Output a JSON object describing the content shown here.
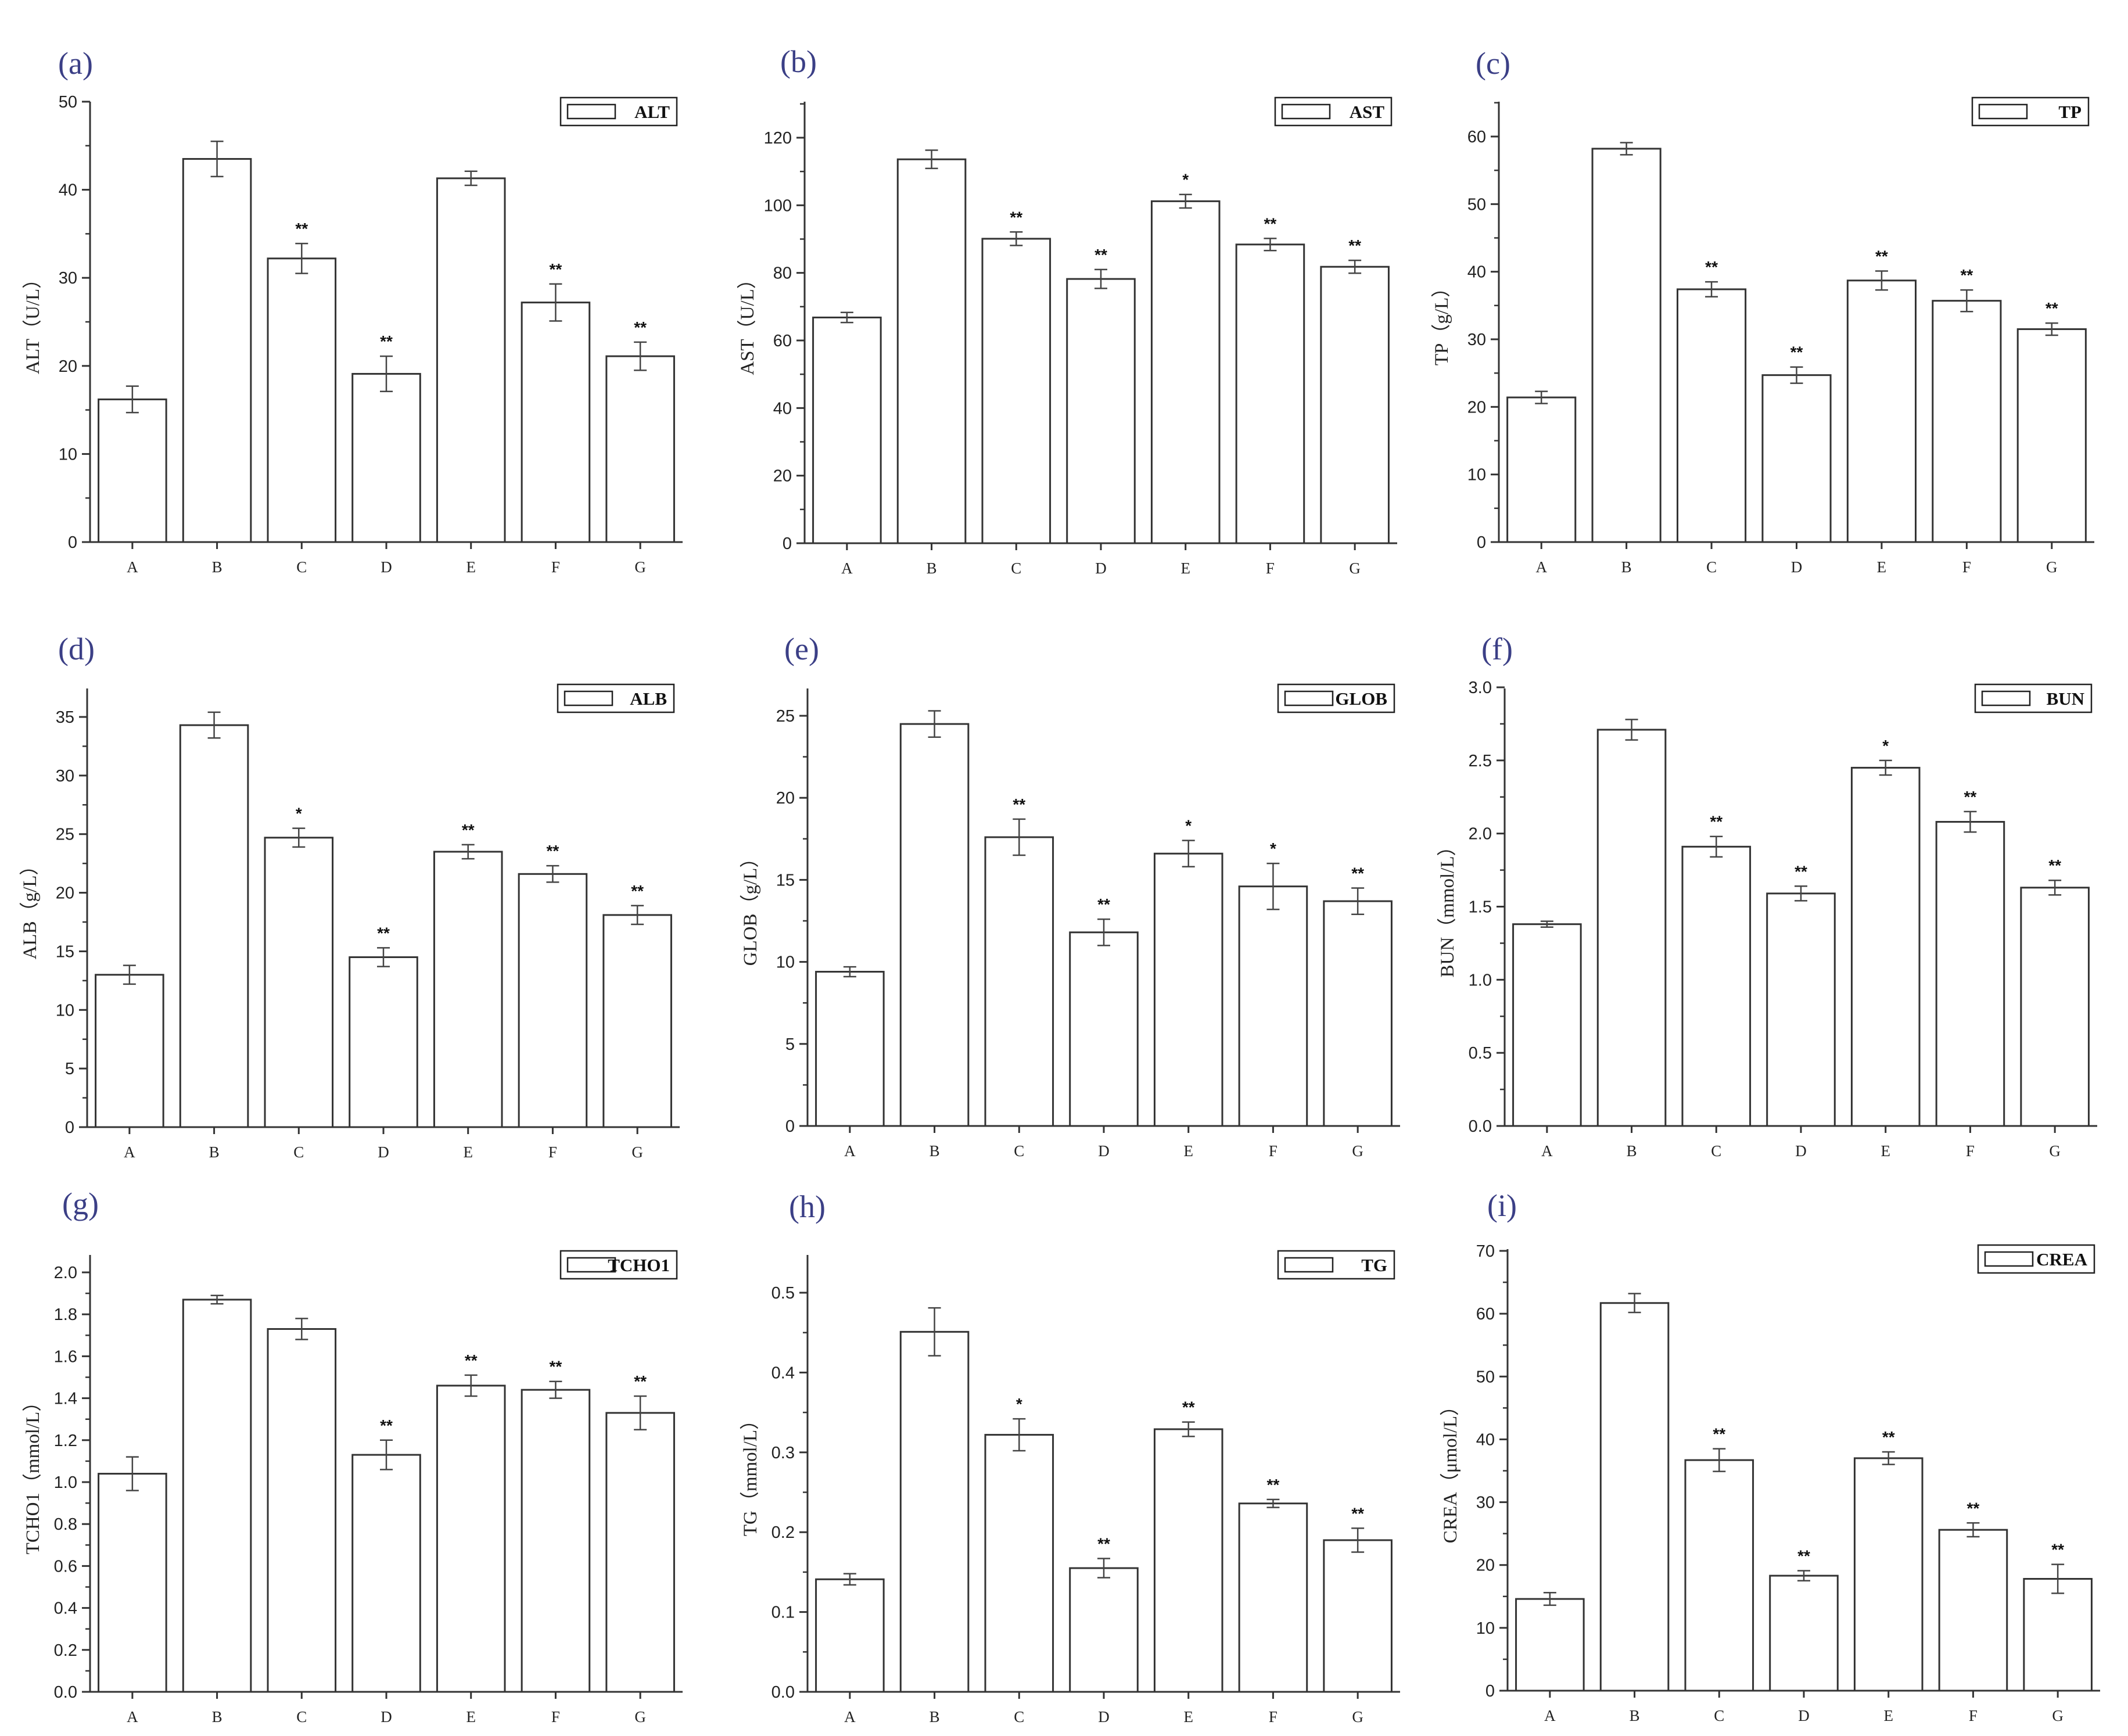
{
  "figure": {
    "panels": [
      {
        "label": "(a)"
      },
      {
        "label": "(b)"
      },
      {
        "label": "(c)"
      },
      {
        "label": "(d)"
      },
      {
        "label": "(e)"
      },
      {
        "label": "(f)"
      },
      {
        "label": "(g)"
      },
      {
        "label": "(h)"
      },
      {
        "label": "(i)"
      }
    ]
  },
  "chart_data": [
    {
      "type": "bar",
      "legend": "ALT",
      "legend_position": "top-right",
      "ylabel": "ALT（U/L）",
      "xlabel": "",
      "categories": [
        "A",
        "B",
        "C",
        "D",
        "E",
        "F",
        "G"
      ],
      "values": [
        16.2,
        43.5,
        32.2,
        19.1,
        41.3,
        27.2,
        21.1
      ],
      "errors": [
        1.5,
        2.0,
        1.7,
        2.0,
        0.8,
        2.1,
        1.6
      ],
      "significance": [
        "",
        "",
        "**",
        "**",
        "",
        "**",
        "**"
      ],
      "ylim": [
        0,
        50
      ],
      "yticks": [
        0,
        10,
        20,
        30,
        40,
        50
      ],
      "yminor": 5
    },
    {
      "type": "bar",
      "legend": "AST",
      "legend_position": "top-right",
      "ylabel": "AST（U/L）",
      "xlabel": "",
      "categories": [
        "A",
        "B",
        "C",
        "D",
        "E",
        "F",
        "G"
      ],
      "values": [
        66.8,
        113.6,
        90.1,
        78.2,
        101.2,
        88.4,
        81.8
      ],
      "errors": [
        1.5,
        2.7,
        2.0,
        2.8,
        2.0,
        1.8,
        1.9
      ],
      "significance": [
        "",
        "",
        "**",
        "**",
        "*",
        "**",
        "**"
      ],
      "ylim": [
        0,
        130
      ],
      "yticks": [
        0,
        20,
        40,
        60,
        80,
        100,
        120
      ],
      "yminor": 10
    },
    {
      "type": "bar",
      "legend": "TP",
      "legend_position": "top-right",
      "ylabel": "TP（g/L）",
      "xlabel": "",
      "categories": [
        "A",
        "B",
        "C",
        "D",
        "E",
        "F",
        "G"
      ],
      "values": [
        21.4,
        58.2,
        37.4,
        24.7,
        38.7,
        35.7,
        31.5
      ],
      "errors": [
        0.9,
        0.9,
        1.1,
        1.2,
        1.4,
        1.6,
        0.9
      ],
      "significance": [
        "",
        "",
        "**",
        "**",
        "**",
        "**",
        "**"
      ],
      "ylim": [
        0,
        65
      ],
      "yticks": [
        0,
        10,
        20,
        30,
        40,
        50,
        60
      ],
      "yminor": 5
    },
    {
      "type": "bar",
      "legend": "ALB",
      "legend_position": "top-right",
      "ylabel": "ALB（g/L）",
      "xlabel": "",
      "categories": [
        "A",
        "B",
        "C",
        "D",
        "E",
        "F",
        "G"
      ],
      "values": [
        13.0,
        34.3,
        24.7,
        14.5,
        23.5,
        21.6,
        18.1
      ],
      "errors": [
        0.8,
        1.1,
        0.8,
        0.8,
        0.6,
        0.7,
        0.8
      ],
      "significance": [
        "",
        "",
        "*",
        "**",
        "**",
        "**",
        "**"
      ],
      "ylim": [
        0,
        37.5
      ],
      "yticks": [
        0,
        5,
        10,
        15,
        20,
        25,
        30,
        35
      ],
      "yminor": 2.5
    },
    {
      "type": "bar",
      "legend": "GLOB",
      "legend_position": "top-right",
      "ylabel": "GLOB（g/L）",
      "xlabel": "",
      "categories": [
        "A",
        "B",
        "C",
        "D",
        "E",
        "F",
        "G"
      ],
      "values": [
        9.4,
        24.5,
        17.6,
        11.8,
        16.6,
        14.6,
        13.7
      ],
      "errors": [
        0.3,
        0.8,
        1.1,
        0.8,
        0.8,
        1.4,
        0.8
      ],
      "significance": [
        "",
        "",
        "**",
        "**",
        "*",
        "*",
        "**"
      ],
      "ylim": [
        0,
        27.5
      ],
      "yticks": [
        0,
        5,
        10,
        15,
        20,
        25
      ],
      "yminor": 2.5
    },
    {
      "type": "bar",
      "legend": "BUN",
      "legend_position": "top-right",
      "ylabel": "BUN（mmol/L）",
      "xlabel": "",
      "categories": [
        "A",
        "B",
        "C",
        "D",
        "E",
        "F",
        "G"
      ],
      "values": [
        1.38,
        2.71,
        1.91,
        1.59,
        2.45,
        2.08,
        1.63
      ],
      "errors": [
        0.02,
        0.07,
        0.07,
        0.05,
        0.05,
        0.07,
        0.05
      ],
      "significance": [
        "",
        "",
        "**",
        "**",
        "*",
        "**",
        "**"
      ],
      "ylim": [
        0,
        3.0
      ],
      "yticks": [
        0.0,
        0.5,
        1.0,
        1.5,
        2.0,
        2.5,
        3.0
      ],
      "yminor": 0.25
    },
    {
      "type": "bar",
      "legend": "TCHO1",
      "legend_position": "top-right",
      "ylabel": "TCHO1（mmol/L）",
      "xlabel": "",
      "categories": [
        "A",
        "B",
        "C",
        "D",
        "E",
        "F",
        "G"
      ],
      "values": [
        1.04,
        1.87,
        1.73,
        1.13,
        1.46,
        1.44,
        1.33
      ],
      "errors": [
        0.08,
        0.02,
        0.05,
        0.07,
        0.05,
        0.04,
        0.08
      ],
      "significance": [
        "",
        "",
        "",
        "**",
        "**",
        "**",
        "**"
      ],
      "ylim": [
        0,
        2.1
      ],
      "yticks": [
        0.0,
        0.2,
        0.4,
        0.6,
        0.8,
        1.0,
        1.2,
        1.4,
        1.6,
        1.8,
        2.0
      ],
      "yminor": 0.1
    },
    {
      "type": "bar",
      "legend": "TG",
      "legend_position": "top-right",
      "ylabel": "TG（mmol/L）",
      "xlabel": "",
      "categories": [
        "A",
        "B",
        "C",
        "D",
        "E",
        "F",
        "G"
      ],
      "values": [
        0.141,
        0.451,
        0.322,
        0.155,
        0.329,
        0.236,
        0.19
      ],
      "errors": [
        0.007,
        0.03,
        0.02,
        0.012,
        0.009,
        0.005,
        0.015
      ],
      "significance": [
        "",
        "",
        "*",
        "**",
        "**",
        "**",
        "**"
      ],
      "ylim": [
        0,
        0.55
      ],
      "yticks": [
        0.0,
        0.1,
        0.2,
        0.3,
        0.4,
        0.5
      ],
      "yminor": 0.05
    },
    {
      "type": "bar",
      "legend": "CREA",
      "legend_position": "top-right",
      "ylabel": "CREA（μmol/L）",
      "xlabel": "",
      "categories": [
        "A",
        "B",
        "C",
        "D",
        "E",
        "F",
        "G"
      ],
      "values": [
        14.6,
        61.7,
        36.7,
        18.3,
        37.0,
        25.6,
        17.8
      ],
      "errors": [
        1.0,
        1.5,
        1.8,
        0.8,
        1.0,
        1.1,
        2.3
      ],
      "significance": [
        "",
        "",
        "**",
        "**",
        "**",
        "**",
        "**"
      ],
      "ylim": [
        0,
        70
      ],
      "yticks": [
        0,
        10,
        20,
        30,
        40,
        50,
        60,
        70
      ],
      "yminor": 5
    }
  ]
}
